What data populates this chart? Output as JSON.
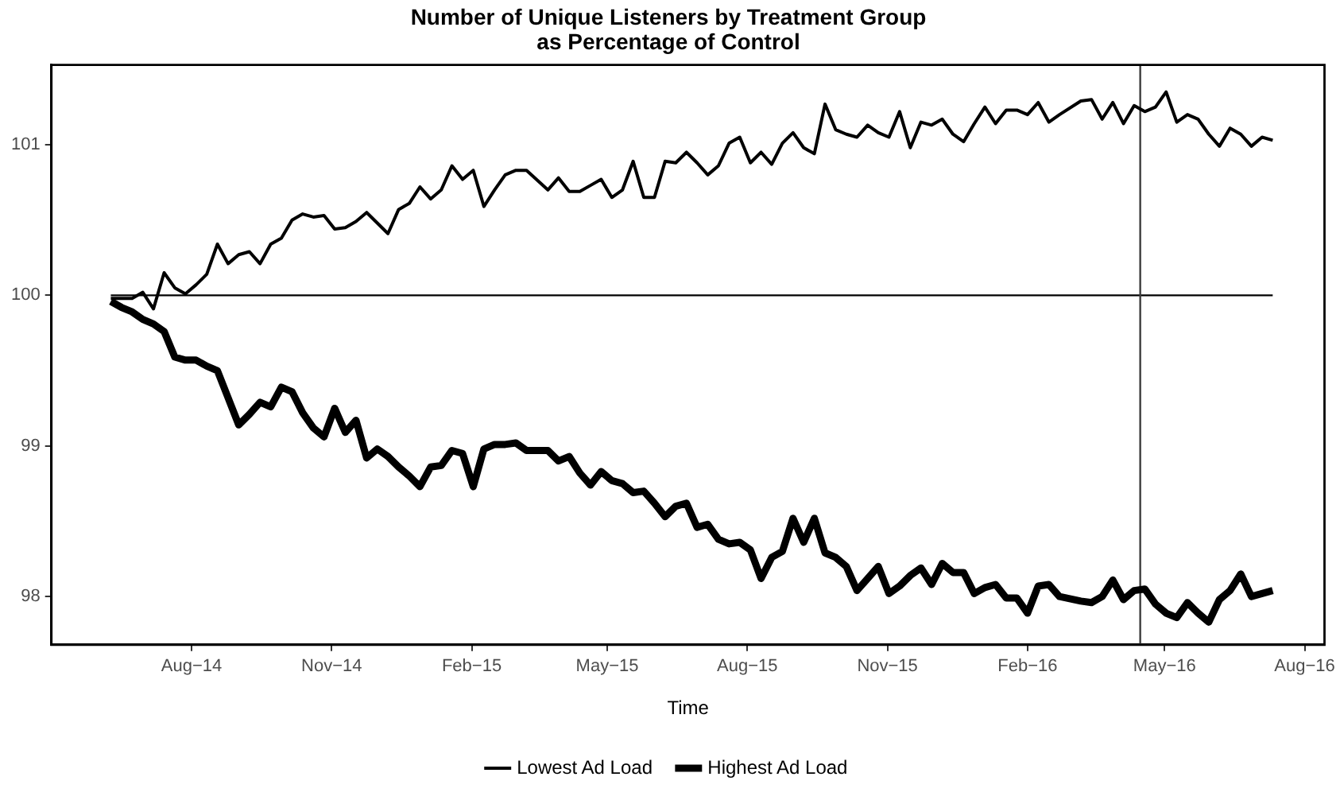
{
  "chart_data": {
    "type": "line",
    "title": "Number of Unique Listeners by Treatment Group\nas Percentage of Control",
    "xlabel": "Time",
    "x": [
      "2014-06-09",
      "2014-06-16",
      "2014-06-23",
      "2014-06-30",
      "2014-07-07",
      "2014-07-14",
      "2014-07-21",
      "2014-07-28",
      "2014-08-04",
      "2014-08-11",
      "2014-08-18",
      "2014-08-25",
      "2014-09-01",
      "2014-09-08",
      "2014-09-15",
      "2014-09-22",
      "2014-09-29",
      "2014-10-06",
      "2014-10-13",
      "2014-10-20",
      "2014-10-27",
      "2014-11-03",
      "2014-11-10",
      "2014-11-17",
      "2014-11-24",
      "2014-12-01",
      "2014-12-08",
      "2014-12-15",
      "2014-12-22",
      "2014-12-29",
      "2015-01-05",
      "2015-01-12",
      "2015-01-19",
      "2015-01-26",
      "2015-02-02",
      "2015-02-09",
      "2015-02-16",
      "2015-02-23",
      "2015-03-02",
      "2015-03-09",
      "2015-03-23",
      "2015-03-30",
      "2015-04-06",
      "2015-04-13",
      "2015-04-20",
      "2015-04-27",
      "2015-05-04",
      "2015-05-11",
      "2015-05-18",
      "2015-05-25",
      "2015-06-01",
      "2015-06-08",
      "2015-06-15",
      "2015-06-22",
      "2015-06-29",
      "2015-07-06",
      "2015-07-13",
      "2015-07-20",
      "2015-07-27",
      "2015-08-03",
      "2015-08-10",
      "2015-08-17",
      "2015-08-24",
      "2015-08-31",
      "2015-09-07",
      "2015-09-14",
      "2015-09-21",
      "2015-09-28",
      "2015-10-05",
      "2015-10-12",
      "2015-10-19",
      "2015-10-26",
      "2015-11-02",
      "2015-11-09",
      "2015-11-16",
      "2015-11-23",
      "2015-11-30",
      "2015-12-07",
      "2015-12-14",
      "2015-12-21",
      "2015-12-28",
      "2016-01-04",
      "2016-01-11",
      "2016-01-18",
      "2016-01-25",
      "2016-02-01",
      "2016-02-08",
      "2016-02-15",
      "2016-02-22",
      "2016-03-07",
      "2016-03-14",
      "2016-03-21",
      "2016-03-28",
      "2016-04-04",
      "2016-04-11",
      "2016-04-18",
      "2016-04-25",
      "2016-05-02",
      "2016-05-09",
      "2016-05-16",
      "2016-05-23",
      "2016-05-30",
      "2016-06-06",
      "2016-06-13",
      "2016-06-20",
      "2016-06-27",
      "2016-07-04",
      "2016-07-11"
    ],
    "series": [
      {
        "name": "Lowest Ad Load",
        "color": "#000000",
        "values": [
          99.98,
          99.98,
          99.98,
          100.02,
          99.91,
          100.15,
          100.05,
          100.01,
          100.07,
          100.14,
          100.34,
          100.21,
          100.27,
          100.29,
          100.21,
          100.34,
          100.38,
          100.5,
          100.54,
          100.52,
          100.53,
          100.44,
          100.45,
          100.49,
          100.55,
          100.48,
          100.41,
          100.57,
          100.61,
          100.72,
          100.64,
          100.7,
          100.86,
          100.77,
          100.83,
          100.59,
          100.7,
          100.8,
          100.83,
          100.83,
          100.7,
          100.78,
          100.69,
          100.69,
          100.73,
          100.77,
          100.65,
          100.7,
          100.89,
          100.65,
          100.65,
          100.89,
          100.88,
          100.95,
          100.88,
          100.8,
          100.86,
          101.01,
          101.05,
          100.88,
          100.95,
          100.87,
          101.01,
          101.08,
          100.98,
          100.94,
          101.27,
          101.1,
          101.07,
          101.05,
          101.13,
          101.08,
          101.05,
          101.22,
          100.98,
          101.15,
          101.13,
          101.17,
          101.07,
          101.02,
          101.14,
          101.25,
          101.14,
          101.23,
          101.23,
          101.2,
          101.28,
          101.15,
          101.2,
          101.29,
          101.3,
          101.17,
          101.28,
          101.14,
          101.26,
          101.22,
          101.25,
          101.35,
          101.15,
          101.2,
          101.17,
          101.07,
          100.99,
          101.11,
          101.07,
          100.99,
          101.05,
          101.03
        ]
      },
      {
        "name": "Highest Ad Load",
        "color": "#000000",
        "values": [
          99.96,
          99.92,
          99.89,
          99.84,
          99.81,
          99.76,
          99.59,
          99.57,
          99.57,
          99.53,
          99.5,
          99.32,
          99.14,
          99.21,
          99.29,
          99.26,
          99.39,
          99.36,
          99.22,
          99.12,
          99.06,
          99.25,
          99.09,
          99.17,
          98.92,
          98.98,
          98.93,
          98.86,
          98.8,
          98.73,
          98.86,
          98.87,
          98.97,
          98.95,
          98.73,
          98.98,
          99.01,
          99.01,
          99.02,
          98.97,
          98.97,
          98.9,
          98.93,
          98.82,
          98.74,
          98.83,
          98.77,
          98.75,
          98.69,
          98.7,
          98.62,
          98.53,
          98.6,
          98.62,
          98.46,
          98.48,
          98.38,
          98.35,
          98.36,
          98.31,
          98.12,
          98.26,
          98.3,
          98.52,
          98.36,
          98.52,
          98.29,
          98.26,
          98.2,
          98.04,
          98.12,
          98.2,
          98.02,
          98.07,
          98.14,
          98.19,
          98.08,
          98.22,
          98.16,
          98.16,
          98.02,
          98.06,
          98.08,
          97.99,
          97.99,
          97.89,
          98.07,
          98.08,
          98.0,
          97.97,
          97.96,
          98.0,
          98.11,
          97.98,
          98.04,
          98.05,
          97.95,
          97.89,
          97.86,
          97.96,
          97.89,
          97.83,
          97.98,
          98.04,
          98.15,
          98.0,
          98.02,
          98.04
        ]
      }
    ],
    "xlim": [
      "2014-05-01",
      "2016-08-14"
    ],
    "xticks": [
      {
        "value": "2014-08-01",
        "label": "Aug−14"
      },
      {
        "value": "2014-11-01",
        "label": "Nov−14"
      },
      {
        "value": "2015-02-01",
        "label": "Feb−15"
      },
      {
        "value": "2015-05-01",
        "label": "May−15"
      },
      {
        "value": "2015-08-01",
        "label": "Aug−15"
      },
      {
        "value": "2015-11-01",
        "label": "Nov−15"
      },
      {
        "value": "2016-02-01",
        "label": "Feb−16"
      },
      {
        "value": "2016-05-01",
        "label": "May−16"
      },
      {
        "value": "2016-08-01",
        "label": "Aug−16"
      }
    ],
    "ylim": [
      97.68,
      101.53
    ],
    "yticks": [
      98,
      99,
      100,
      101
    ],
    "ref_lines": [
      {
        "axis": "y",
        "value": 100,
        "color": "#000000"
      },
      {
        "axis": "x",
        "value": "2016-04-15",
        "color": "#3c3c3c"
      }
    ],
    "grid": false,
    "legend": "bottom",
    "marker": "none",
    "line_style": "solid"
  }
}
